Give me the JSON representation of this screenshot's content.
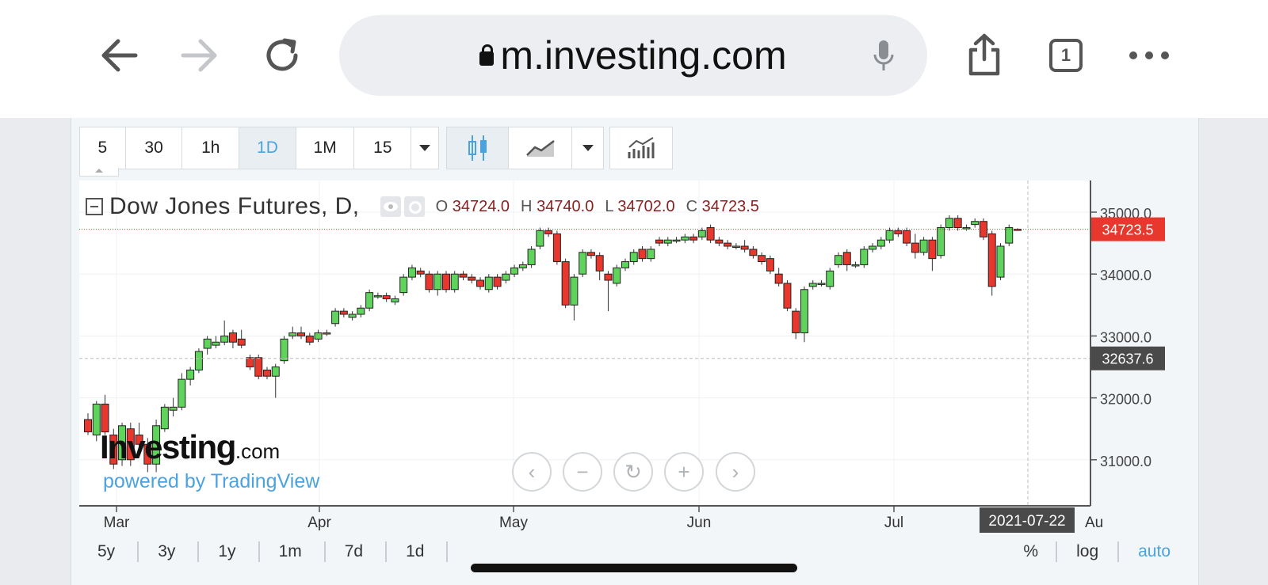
{
  "browser": {
    "url": "m.investing.com",
    "tab_count": "1",
    "icons": [
      "back-arrow-icon",
      "forward-arrow-icon",
      "reload-icon",
      "lock-icon",
      "microphone-icon",
      "share-icon",
      "tabs-icon",
      "more-icon"
    ]
  },
  "toolbar": {
    "intervals": [
      "5",
      "30",
      "1h",
      "1D",
      "1M",
      "15"
    ],
    "active_interval": "1D"
  },
  "legend": {
    "title": "Dow Jones Futures, D,",
    "o_label": "O",
    "o_value": "34724.0",
    "h_label": "H",
    "h_value": "34740.0",
    "l_label": "L",
    "l_value": "34702.0",
    "c_label": "C",
    "c_value": "34723.5"
  },
  "branding": {
    "logo_main": "Investing",
    "logo_suffix": ".com",
    "powered": "powered by TradingView"
  },
  "ranges": [
    "5y",
    "3y",
    "1y",
    "1m",
    "7d",
    "1d"
  ],
  "right_buttons": {
    "percent": "%",
    "log": "log",
    "auto": "auto"
  },
  "colors": {
    "up": "#5fd35b",
    "down": "#e8372c",
    "accent": "#4aa3df",
    "price_tag": "#e8372c",
    "cursor_tag": "#4a4a4a"
  },
  "chart_data": {
    "type": "candlestick",
    "y_ticks": [
      "35000.0",
      "34000.0",
      "33000.0",
      "32000.0",
      "31000.0"
    ],
    "x_ticks": [
      "Mar",
      "Apr",
      "May",
      "Jun",
      "Jul",
      "Au"
    ],
    "last_price": "34723.5",
    "cursor_price": "32637.6",
    "cursor_date": "2021-07-22",
    "ylim": [
      30200,
      35400
    ],
    "candles": [
      [
        31650,
        31450,
        31750,
        31400
      ],
      [
        31400,
        31900,
        31950,
        31300
      ],
      [
        31900,
        31450,
        32050,
        31400
      ],
      [
        31400,
        30930,
        31500,
        30850
      ],
      [
        31000,
        31550,
        31600,
        30900
      ],
      [
        31500,
        31000,
        31600,
        30900
      ],
      [
        31400,
        31250,
        31600,
        31200
      ],
      [
        31250,
        30930,
        31350,
        30800
      ],
      [
        30930,
        31550,
        31650,
        30800
      ],
      [
        31500,
        31850,
        31900,
        31450
      ],
      [
        31800,
        31850,
        32000,
        31700
      ],
      [
        31850,
        32300,
        32400,
        31800
      ],
      [
        32300,
        32450,
        32500,
        32200
      ],
      [
        32450,
        32750,
        32800,
        32400
      ],
      [
        32800,
        32950,
        33000,
        32700
      ],
      [
        32850,
        32900,
        33000,
        32800
      ],
      [
        32900,
        33000,
        33250,
        32850
      ],
      [
        33050,
        32900,
        33100,
        32800
      ],
      [
        32950,
        32850,
        33100,
        32800
      ],
      [
        32650,
        32500,
        32700,
        32450
      ],
      [
        32650,
        32350,
        32700,
        32300
      ],
      [
        32450,
        32350,
        32500,
        32300
      ],
      [
        32350,
        32500,
        32550,
        32000
      ],
      [
        32600,
        32950,
        33000,
        32550
      ],
      [
        33000,
        33050,
        33150,
        32950
      ],
      [
        33050,
        33000,
        33150,
        32950
      ],
      [
        33000,
        32900,
        33050,
        32850
      ],
      [
        32950,
        33050,
        33100,
        32900
      ],
      [
        33050,
        33050,
        33100,
        33000
      ],
      [
        33200,
        33400,
        33450,
        33150
      ],
      [
        33400,
        33350,
        33450,
        33300
      ],
      [
        33300,
        33350,
        33400,
        33250
      ],
      [
        33350,
        33450,
        33500,
        33300
      ],
      [
        33450,
        33700,
        33750,
        33400
      ],
      [
        33650,
        33650,
        33700,
        33600
      ],
      [
        33650,
        33600,
        33700,
        33550
      ],
      [
        33550,
        33600,
        33650,
        33500
      ],
      [
        33700,
        33950,
        34000,
        33650
      ],
      [
        33950,
        34100,
        34150,
        33900
      ],
      [
        34050,
        34000,
        34100,
        33950
      ],
      [
        34000,
        33750,
        34050,
        33700
      ],
      [
        33750,
        34000,
        34050,
        33650
      ],
      [
        34000,
        33750,
        34050,
        33700
      ],
      [
        33750,
        34000,
        34050,
        33700
      ],
      [
        34000,
        33950,
        34050,
        33900
      ],
      [
        33950,
        33900,
        34000,
        33850
      ],
      [
        33900,
        33800,
        33950,
        33750
      ],
      [
        33750,
        33950,
        34000,
        33700
      ],
      [
        33950,
        33800,
        34000,
        33750
      ],
      [
        33900,
        34000,
        34050,
        33850
      ],
      [
        34000,
        34100,
        34150,
        33950
      ],
      [
        34100,
        34150,
        34200,
        34050
      ],
      [
        34150,
        34400,
        34450,
        34100
      ],
      [
        34450,
        34700,
        34750,
        34400
      ],
      [
        34700,
        34650,
        34750,
        34600
      ],
      [
        34650,
        34200,
        34700,
        34150
      ],
      [
        34200,
        33500,
        34250,
        33450
      ],
      [
        33500,
        33950,
        34000,
        33250
      ],
      [
        34000,
        34350,
        34400,
        33950
      ],
      [
        34350,
        34300,
        34400,
        34250
      ],
      [
        34300,
        34050,
        34350,
        33900
      ],
      [
        34000,
        33900,
        34050,
        33400
      ],
      [
        33850,
        34100,
        34150,
        33800
      ],
      [
        34100,
        34200,
        34250,
        34050
      ],
      [
        34200,
        34350,
        34400,
        34150
      ],
      [
        34400,
        34250,
        34450,
        34200
      ],
      [
        34250,
        34400,
        34450,
        34200
      ],
      [
        34550,
        34500,
        34600,
        34450
      ],
      [
        34500,
        34550,
        34600,
        34450
      ],
      [
        34550,
        34550,
        34600,
        34500
      ],
      [
        34550,
        34600,
        34650,
        34500
      ],
      [
        34600,
        34550,
        34650,
        34500
      ],
      [
        34600,
        34700,
        34750,
        34550
      ],
      [
        34750,
        34550,
        34800,
        34500
      ],
      [
        34550,
        34500,
        34600,
        34450
      ],
      [
        34500,
        34450,
        34550,
        34400
      ],
      [
        34450,
        34450,
        34500,
        34400
      ],
      [
        34450,
        34400,
        34550,
        34350
      ],
      [
        34400,
        34300,
        34450,
        34250
      ],
      [
        34300,
        34200,
        34350,
        34150
      ],
      [
        34250,
        34050,
        34300,
        34000
      ],
      [
        34000,
        33850,
        34100,
        33800
      ],
      [
        33850,
        33450,
        33900,
        33400
      ],
      [
        33400,
        33050,
        33450,
        32950
      ],
      [
        33050,
        33750,
        33800,
        32900
      ],
      [
        33800,
        33850,
        33900,
        33750
      ],
      [
        33850,
        33850,
        33900,
        33800
      ],
      [
        33800,
        34050,
        34100,
        33750
      ],
      [
        34150,
        34300,
        34350,
        34100
      ],
      [
        34350,
        34150,
        34400,
        34050
      ],
      [
        34150,
        34150,
        34200,
        34100
      ],
      [
        34150,
        34400,
        34450,
        34100
      ],
      [
        34400,
        34450,
        34500,
        34350
      ],
      [
        34450,
        34550,
        34600,
        34400
      ],
      [
        34550,
        34700,
        34750,
        34500
      ],
      [
        34700,
        34650,
        34750,
        34600
      ],
      [
        34700,
        34500,
        34750,
        34450
      ],
      [
        34500,
        34350,
        34650,
        34250
      ],
      [
        34350,
        34550,
        34600,
        34300
      ],
      [
        34550,
        34250,
        34600,
        34050
      ],
      [
        34300,
        34750,
        34800,
        34250
      ],
      [
        34750,
        34900,
        34950,
        34700
      ],
      [
        34900,
        34750,
        34950,
        34700
      ],
      [
        34750,
        34750,
        34800,
        34700
      ],
      [
        34800,
        34850,
        34900,
        34750
      ],
      [
        34850,
        34600,
        34900,
        34550
      ],
      [
        34650,
        33800,
        34700,
        33650
      ],
      [
        33950,
        34450,
        34500,
        33900
      ],
      [
        34500,
        34750,
        34800,
        34450
      ],
      [
        34724,
        34723.5,
        34740,
        34702
      ]
    ]
  }
}
